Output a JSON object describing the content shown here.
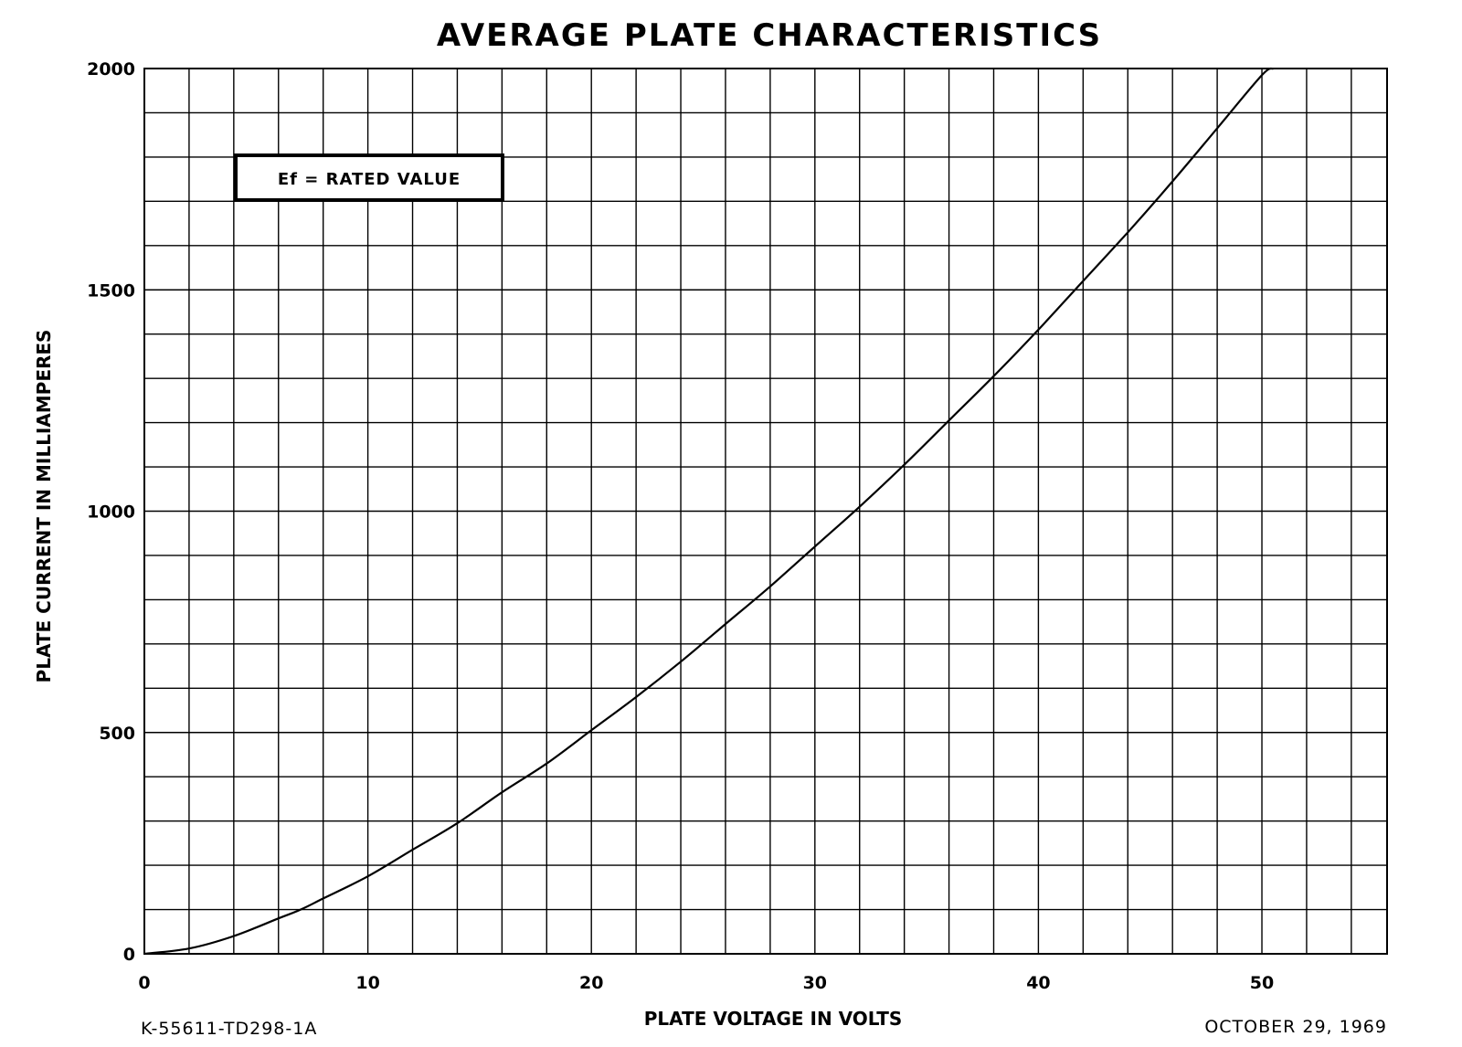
{
  "chart_data": {
    "type": "line",
    "title": "AVERAGE PLATE CHARACTERISTICS",
    "xlabel": "PLATE VOLTAGE IN VOLTS",
    "ylabel": "PLATE CURRENT IN MILLIAMPERES",
    "xlim": [
      0,
      55.6
    ],
    "ylim": [
      0,
      2000
    ],
    "x_ticks": [
      0,
      10,
      20,
      30,
      40,
      50
    ],
    "y_ticks": [
      0,
      500,
      1000,
      1500,
      2000
    ],
    "x_tick_labels": [
      "0",
      "10",
      "20",
      "30",
      "40",
      "50"
    ],
    "y_tick_labels": [
      "0",
      "500",
      "1000",
      "1500",
      "2000"
    ],
    "grid": true,
    "legend": "none",
    "annotation": "Ef = RATED VALUE",
    "series": [
      {
        "x": [
          0,
          2,
          4,
          6,
          7,
          8,
          10,
          12,
          14,
          16,
          18,
          20,
          22,
          24,
          26,
          28,
          30,
          32,
          34,
          36,
          38,
          40,
          42,
          44,
          46,
          48,
          50,
          50.5
        ],
        "y": [
          0,
          12,
          40,
          80,
          100,
          125,
          175,
          235,
          295,
          365,
          430,
          505,
          580,
          660,
          745,
          830,
          920,
          1010,
          1105,
          1205,
          1305,
          1410,
          1520,
          1630,
          1745,
          1865,
          1985,
          2000
        ]
      }
    ]
  },
  "footer": {
    "left": "K-55611-TD298-1A",
    "right": "OCTOBER 29, 1969"
  }
}
